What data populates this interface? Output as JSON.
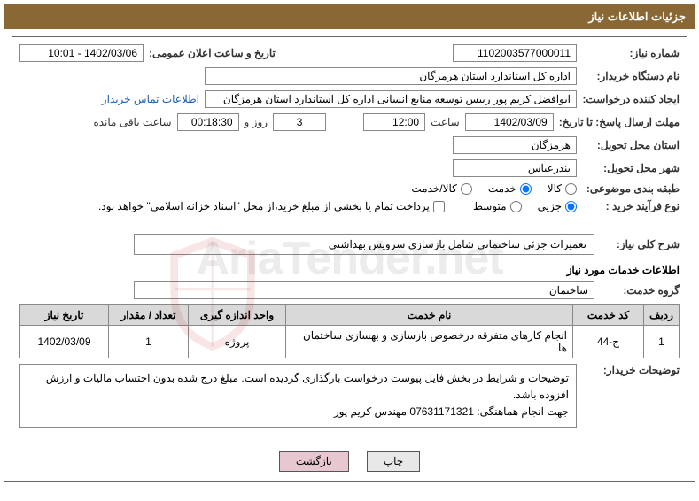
{
  "header_title": "جزئیات اطلاعات نیاز",
  "labels": {
    "need_no": "شماره نیاز:",
    "announce_date": "تاریخ و ساعت اعلان عمومی:",
    "buyer_org": "نام دستگاه خریدار:",
    "requester": "ایجاد کننده درخواست:",
    "contact_link": "اطلاعات تماس خریدار",
    "deadline": "مهلت ارسال پاسخ: تا تاریخ:",
    "time_word": "ساعت",
    "days_and": "روز و",
    "time_remaining": "ساعت باقی مانده",
    "delivery_province": "استان محل تحویل:",
    "delivery_city": "شهر محل تحویل:",
    "category": "طبقه بندی موضوعی:",
    "process_type": "نوع فرآیند خرید :",
    "treasury_note": "پرداخت تمام یا بخشی از مبلغ خرید،از محل \"اسناد خزانه اسلامی\" خواهد بود.",
    "general_desc": "شرح کلی نیاز:",
    "services_info": "اطلاعات خدمات مورد نیاز",
    "service_group": "گروه خدمت:",
    "buyer_notes_label": "توضیحات خریدار:"
  },
  "fields": {
    "need_no": "1102003577000011",
    "announce_date": "1402/03/06 - 10:01",
    "buyer_org": "اداره کل استاندارد استان هرمزگان",
    "requester": "ابوافضل کریم پور رییس توسعه منابع انسانی اداره کل استاندارد استان هرمزگان",
    "deadline_date": "1402/03/09",
    "deadline_time": "12:00",
    "remaining_days": "3",
    "remaining_time": "00:18:30",
    "delivery_province": "هرمزگان",
    "delivery_city": "بندرعباس",
    "general_desc": "تعمیرات جزئی ساختمانی شامل بازسازی سرویس بهداشتی",
    "service_group": "ساختمان"
  },
  "radios": {
    "cat_goods": "کالا",
    "cat_service": "خدمت",
    "cat_both": "کالا/خدمت",
    "proc_minor": "جزیی",
    "proc_medium": "متوسط"
  },
  "table": {
    "headers": {
      "row": "ردیف",
      "code": "کد خدمت",
      "name": "نام خدمت",
      "unit": "واحد اندازه گیری",
      "qty": "تعداد / مقدار",
      "date": "تاریخ نیاز"
    },
    "rows": [
      {
        "row": "1",
        "code": "ج-44",
        "name": "انجام کارهای متفرقه درخصوص بازسازی و بهسازی ساختمان ها",
        "unit": "پروژه",
        "qty": "1",
        "date": "1402/03/09"
      }
    ]
  },
  "buyer_notes": "توضیحات و شرایط در بخش فایل پیوست درخواست بارگذاری گردیده است. مبلغ درج شده بدون احتساب مالیات و ارزش افزوده باشد.\nجهت انجام هماهنگی: 07631171321 مهندس کریم پور",
  "buttons": {
    "print": "چاپ",
    "back": "بازگشت"
  },
  "watermark": "AriaTender.net",
  "colors": {
    "header_bg": "#8a6835",
    "th_bg": "#d9d9d9",
    "link": "#1a5fb4",
    "wm_red": "rgba(200,50,50,0.10)",
    "wm_gray": "rgba(100,100,100,0.12)"
  },
  "col_widths": {
    "row": 40,
    "code": 80,
    "name": 340,
    "unit": 110,
    "qty": 90,
    "date": 100
  }
}
